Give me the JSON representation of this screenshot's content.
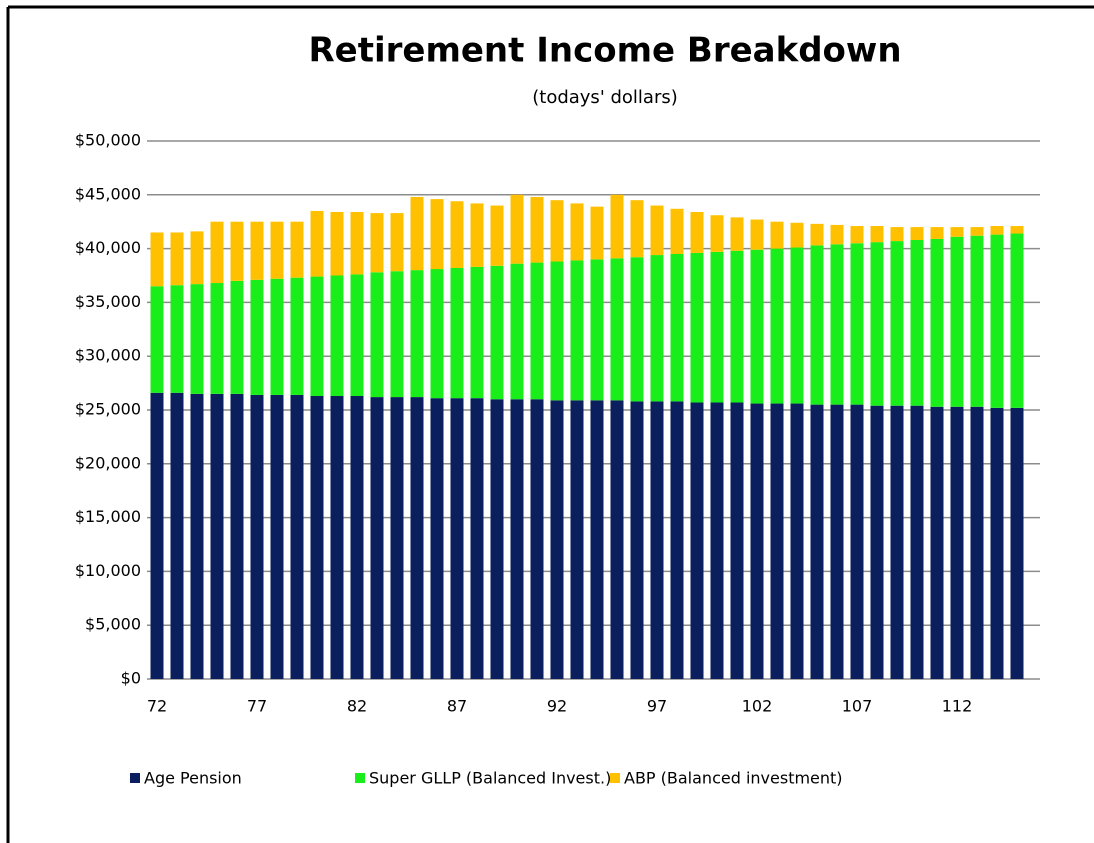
{
  "chart_data": {
    "type": "stacked_bar",
    "title": "Retirement Income Breakdown",
    "subtitle": "(todays' dollars)",
    "categories": [
      72,
      null,
      null,
      null,
      null,
      77,
      null,
      null,
      null,
      null,
      82,
      null,
      null,
      null,
      null,
      87,
      null,
      null,
      null,
      null,
      92,
      null,
      null,
      null,
      null,
      97,
      null,
      null,
      null,
      null,
      102,
      null,
      null,
      null,
      null,
      107,
      null,
      null,
      null,
      null,
      112,
      null,
      null,
      null
    ],
    "series": [
      {
        "name": "Age Pension",
        "color": "#0b1f5e",
        "values": [
          26600,
          26600,
          26500,
          26500,
          26500,
          26400,
          26400,
          26400,
          26300,
          26300,
          26300,
          26200,
          26200,
          26200,
          26100,
          26100,
          26100,
          26000,
          26000,
          26000,
          25900,
          25900,
          25900,
          25900,
          25800,
          25800,
          25800,
          25700,
          25700,
          25700,
          25600,
          25600,
          25600,
          25500,
          25500,
          25500,
          25400,
          25400,
          25400,
          25300,
          25300,
          25300,
          25200,
          25200
        ]
      },
      {
        "name": "Super GLLP (Balanced Invest.)",
        "color": "#1aee1a",
        "values": [
          9900,
          10000,
          10200,
          10300,
          10500,
          10700,
          10800,
          10900,
          11100,
          11200,
          11300,
          11600,
          11700,
          11800,
          12000,
          12100,
          12200,
          12400,
          12600,
          12700,
          12900,
          13000,
          13100,
          13200,
          13400,
          13600,
          13700,
          13900,
          14000,
          14100,
          14300,
          14400,
          14500,
          14800,
          14900,
          15000,
          15200,
          15300,
          15400,
          15600,
          15800,
          15900,
          16100,
          16200
        ]
      },
      {
        "name": "ABP (Balanced investment)",
        "color": "#ffc000",
        "values": [
          5000,
          4900,
          4900,
          5700,
          5500,
          5400,
          5300,
          5200,
          6100,
          5900,
          5800,
          5500,
          5400,
          6800,
          6500,
          6200,
          5900,
          5600,
          6400,
          6100,
          5700,
          5300,
          4900,
          5900,
          5300,
          4600,
          4200,
          3800,
          3400,
          3100,
          2800,
          2500,
          2300,
          2000,
          1800,
          1600,
          1500,
          1300,
          1200,
          1100,
          900,
          800,
          800,
          700
        ]
      }
    ],
    "ylim": [
      0,
      50000
    ],
    "yticks": [
      {
        "value": 0,
        "label": "$0"
      },
      {
        "value": 5000,
        "label": "$5,000"
      },
      {
        "value": 10000,
        "label": "$10,000"
      },
      {
        "value": 15000,
        "label": "$15,000"
      },
      {
        "value": 20000,
        "label": "$20,000"
      },
      {
        "value": 25000,
        "label": "$25,000"
      },
      {
        "value": 30000,
        "label": "$30,000"
      },
      {
        "value": 35000,
        "label": "$35,000"
      },
      {
        "value": 40000,
        "label": "$40,000"
      },
      {
        "value": 45000,
        "label": "$45,000"
      },
      {
        "value": 50000,
        "label": "$50,000"
      }
    ],
    "grid": true,
    "legend": "bottom"
  }
}
